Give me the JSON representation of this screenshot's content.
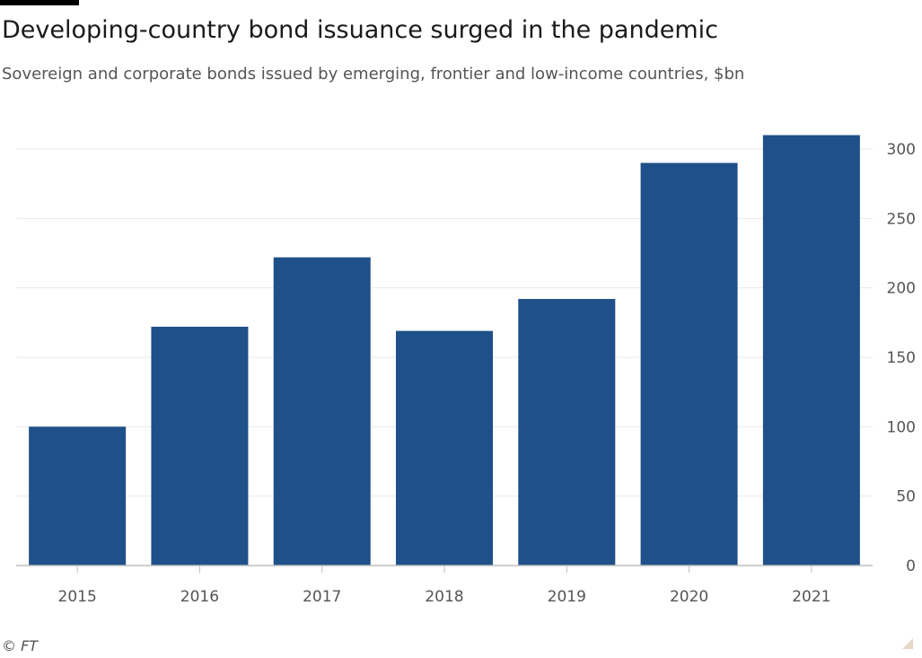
{
  "title": "Developing-country bond issuance surged in the pandemic",
  "subtitle": "Sovereign and corporate bonds issued by emerging, frontier and low-income countries, $bn",
  "source": "© FT",
  "colors": {
    "bar": "#1f5089",
    "grid": "#e9e9e9",
    "axis": "#bdbdbd"
  },
  "chart_data": {
    "type": "bar",
    "categories": [
      "2015",
      "2016",
      "2017",
      "2018",
      "2019",
      "2020",
      "2021"
    ],
    "values": [
      100,
      172,
      222,
      169,
      192,
      290,
      310
    ],
    "ylim": [
      0,
      300
    ],
    "yticks": [
      "0",
      "50",
      "100",
      "150",
      "200",
      "250",
      "300"
    ],
    "xlabel": "",
    "ylabel": "$bn",
    "y_axis_position": "right",
    "grid": true
  }
}
